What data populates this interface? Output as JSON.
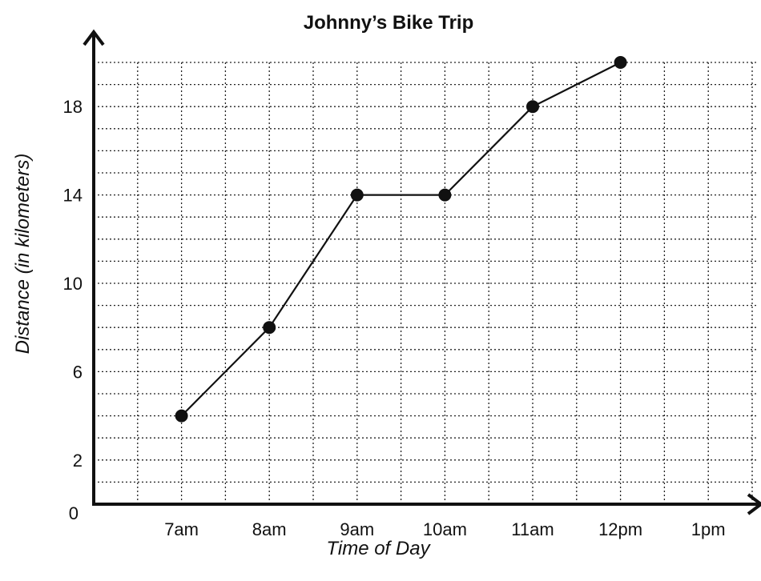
{
  "chart_data": {
    "type": "line",
    "title": "Johnny’s Bike Trip",
    "xlabel": "Time of Day",
    "ylabel": "Distance (in kilometers)",
    "categories": [
      "7am",
      "8am",
      "9am",
      "10am",
      "11am",
      "12pm",
      "1pm"
    ],
    "series": [
      {
        "values": [
          4,
          8,
          14,
          14,
          18,
          20,
          null
        ]
      }
    ],
    "y_ticks": [
      "0",
      "2",
      "6",
      "10",
      "14",
      "18"
    ],
    "y_tick_values": [
      0,
      2,
      6,
      10,
      14,
      18
    ],
    "ylim": [
      0,
      20
    ],
    "grid": true,
    "grid_step": 1
  }
}
